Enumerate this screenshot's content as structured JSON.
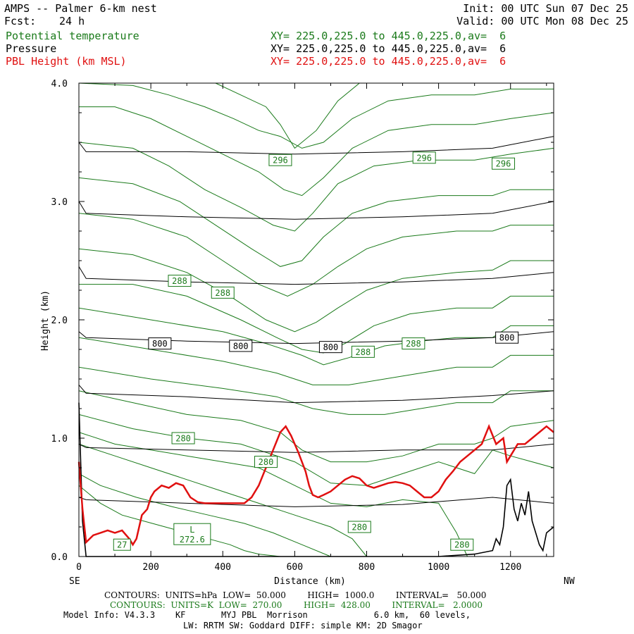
{
  "header": {
    "title": "AMPS -- Palmer 6-km nest",
    "fcst_label": "Fcst:",
    "fcst_value": "24 h",
    "init": "Init: 00 UTC Sun 07 Dec 25",
    "valid": "Valid: 00 UTC Mon 08 Dec 25",
    "fields": [
      {
        "name": "Potential temperature",
        "xy": "XY= 225.0,225.0 to 445.0,225.0,av=  6",
        "color": "#1a7a1a"
      },
      {
        "name": "Pressure",
        "xy": "XY= 225.0,225.0 to 445.0,225.0,av=  6",
        "color": "#000000"
      },
      {
        "name": "PBL Height (km MSL)",
        "xy": "XY= 225.0,225.0 to 445.0,225.0,av=  6",
        "color": "#e01010"
      }
    ]
  },
  "axes": {
    "xlabel": "Distance (km)",
    "ylabel": "Height (km)",
    "left_end": "SE",
    "right_end": "NW"
  },
  "footer": {
    "contours_pressure": "CONTOURS:  UNITS=hPa  LOW=  50.000        HIGH=  1000.0        INTERVAL=   50.000",
    "contours_theta": "CONTOURS:  UNITS=K  LOW=  270.00        HIGH=  428.00        INTERVAL=   2.0000",
    "model_info_1": "Model Info: V4.3.3    KF       MYJ PBL  Morrison             6.0 km,  60 levels,",
    "model_info_2": "LW: RRTM SW: Goddard DIFF: simple KM: 2D Smagor"
  },
  "colors": {
    "theta": "#1a7a1a",
    "pressure": "#000000",
    "pbl": "#e01010",
    "terrain": "#000000"
  },
  "chart_data": {
    "type": "line",
    "xlim": [
      0,
      1320
    ],
    "ylim": [
      0,
      4.0
    ],
    "x_ticks": [
      0,
      200,
      400,
      600,
      800,
      1000,
      1200
    ],
    "y_ticks": [
      "0.0",
      "1.0",
      "2.0",
      "3.0",
      "4.0"
    ],
    "grid": false,
    "pbl_height": {
      "name": "PBL Height (km MSL)",
      "x": [
        0,
        10,
        20,
        40,
        60,
        80,
        100,
        120,
        140,
        150,
        160,
        175,
        190,
        200,
        210,
        230,
        250,
        270,
        290,
        310,
        330,
        350,
        380,
        410,
        440,
        460,
        480,
        500,
        520,
        540,
        560,
        575,
        590,
        610,
        630,
        640,
        650,
        665,
        680,
        700,
        720,
        740,
        760,
        780,
        800,
        820,
        840,
        860,
        880,
        900,
        920,
        940,
        960,
        980,
        1000,
        1020,
        1040,
        1060,
        1080,
        1100,
        1120,
        1140,
        1160,
        1180,
        1190,
        1200,
        1220,
        1240,
        1260,
        1280,
        1300,
        1320
      ],
      "y": [
        0.8,
        0.4,
        0.12,
        0.18,
        0.2,
        0.22,
        0.2,
        0.22,
        0.15,
        0.1,
        0.15,
        0.35,
        0.4,
        0.5,
        0.55,
        0.6,
        0.58,
        0.62,
        0.6,
        0.5,
        0.46,
        0.45,
        0.45,
        0.45,
        0.45,
        0.45,
        0.5,
        0.6,
        0.75,
        0.9,
        1.05,
        1.1,
        1.02,
        0.88,
        0.72,
        0.6,
        0.52,
        0.5,
        0.52,
        0.55,
        0.6,
        0.65,
        0.68,
        0.66,
        0.6,
        0.58,
        0.6,
        0.62,
        0.63,
        0.62,
        0.6,
        0.55,
        0.5,
        0.5,
        0.55,
        0.65,
        0.72,
        0.8,
        0.85,
        0.9,
        0.95,
        1.1,
        0.95,
        1.0,
        0.8,
        0.85,
        0.95,
        0.95,
        1.0,
        1.05,
        1.1,
        1.05
      ]
    },
    "terrain": {
      "name": "Terrain",
      "x": [
        0,
        10,
        20,
        60,
        100,
        140,
        160,
        200,
        400,
        600,
        800,
        1000,
        1100,
        1150,
        1160,
        1170,
        1180,
        1190,
        1200,
        1210,
        1220,
        1230,
        1240,
        1250,
        1260,
        1270,
        1280,
        1290,
        1300,
        1320
      ],
      "y": [
        1.3,
        0.3,
        0.0,
        0.0,
        0.0,
        0.0,
        0.0,
        0.0,
        0.0,
        0.0,
        0.0,
        0.0,
        0.02,
        0.05,
        0.15,
        0.1,
        0.25,
        0.6,
        0.65,
        0.4,
        0.3,
        0.45,
        0.35,
        0.55,
        0.3,
        0.2,
        0.1,
        0.05,
        0.2,
        0.25
      ]
    },
    "pressure_contours": [
      {
        "x": [
          0,
          20,
          300,
          600,
          900,
          1150,
          1320
        ],
        "y": [
          0.5,
          0.48,
          0.45,
          0.42,
          0.44,
          0.5,
          0.45
        ]
      },
      {
        "x": [
          0,
          20,
          300,
          600,
          900,
          1150,
          1320
        ],
        "y": [
          0.95,
          0.92,
          0.9,
          0.88,
          0.9,
          0.9,
          0.95
        ]
      },
      {
        "x": [
          0,
          20,
          300,
          600,
          900,
          1150,
          1320
        ],
        "y": [
          1.45,
          1.38,
          1.35,
          1.3,
          1.32,
          1.36,
          1.4
        ]
      },
      {
        "x": [
          0,
          20,
          300,
          600,
          900,
          1150,
          1320
        ],
        "y": [
          1.9,
          1.85,
          1.82,
          1.8,
          1.82,
          1.85,
          1.9
        ]
      },
      {
        "x": [
          0,
          20,
          300,
          600,
          900,
          1150,
          1320
        ],
        "y": [
          2.45,
          2.35,
          2.32,
          2.3,
          2.32,
          2.35,
          2.4
        ]
      },
      {
        "x": [
          0,
          20,
          300,
          600,
          900,
          1150,
          1320
        ],
        "y": [
          3.0,
          2.9,
          2.87,
          2.85,
          2.87,
          2.9,
          3.0
        ]
      },
      {
        "x": [
          0,
          20,
          300,
          600,
          900,
          1150,
          1320
        ],
        "y": [
          3.5,
          3.42,
          3.42,
          3.4,
          3.42,
          3.45,
          3.55
        ]
      }
    ],
    "theta_contours": [
      {
        "x": [
          0,
          60,
          120,
          180,
          240,
          300,
          360,
          420,
          460,
          500,
          560
        ],
        "y": [
          0.6,
          0.45,
          0.35,
          0.3,
          0.25,
          0.2,
          0.15,
          0.1,
          0.05,
          0.02,
          0.0
        ]
      },
      {
        "x": [
          0,
          60,
          160,
          260,
          360,
          460,
          540,
          620,
          700
        ],
        "y": [
          0.7,
          0.6,
          0.5,
          0.42,
          0.35,
          0.28,
          0.2,
          0.1,
          0.0
        ]
      },
      {
        "x": [
          0,
          100,
          200,
          300,
          400,
          500,
          600,
          700,
          760,
          800
        ],
        "y": [
          0.95,
          0.85,
          0.75,
          0.65,
          0.55,
          0.45,
          0.35,
          0.25,
          0.15,
          0.0
        ]
      },
      {
        "x": [
          0,
          100,
          200,
          300,
          400,
          500,
          600,
          700,
          800,
          900,
          1000,
          1050,
          1080
        ],
        "y": [
          1.05,
          0.95,
          0.9,
          0.85,
          0.8,
          0.75,
          0.6,
          0.45,
          0.42,
          0.48,
          0.45,
          0.2,
          0.0
        ]
      },
      {
        "x": [
          0,
          150,
          300,
          450,
          600,
          700,
          800,
          900,
          1000,
          1100,
          1150,
          1200,
          1320
        ],
        "y": [
          1.2,
          1.08,
          1.0,
          0.95,
          0.8,
          0.62,
          0.6,
          0.7,
          0.8,
          0.7,
          0.9,
          0.85,
          0.75
        ]
      },
      {
        "x": [
          0,
          150,
          300,
          450,
          560,
          620,
          700,
          800,
          900,
          1000,
          1100,
          1150,
          1200,
          1320
        ],
        "y": [
          1.4,
          1.3,
          1.2,
          1.15,
          1.05,
          0.9,
          0.8,
          0.8,
          0.85,
          0.95,
          0.95,
          1.0,
          1.1,
          1.15
        ]
      },
      {
        "x": [
          0,
          200,
          400,
          550,
          650,
          750,
          850,
          950,
          1050,
          1150,
          1200,
          1320
        ],
        "y": [
          1.6,
          1.5,
          1.42,
          1.35,
          1.25,
          1.2,
          1.2,
          1.25,
          1.3,
          1.3,
          1.4,
          1.4
        ]
      },
      {
        "x": [
          0,
          200,
          400,
          550,
          650,
          750,
          850,
          950,
          1050,
          1150,
          1200,
          1320
        ],
        "y": [
          1.85,
          1.75,
          1.65,
          1.55,
          1.45,
          1.45,
          1.5,
          1.55,
          1.6,
          1.6,
          1.7,
          1.7
        ]
      },
      {
        "x": [
          0,
          200,
          400,
          520,
          620,
          680,
          750,
          850,
          950,
          1050,
          1150,
          1200,
          1320
        ],
        "y": [
          2.1,
          2.0,
          1.9,
          1.8,
          1.7,
          1.62,
          1.68,
          1.78,
          1.82,
          1.85,
          1.85,
          1.95,
          1.95
        ]
      },
      {
        "x": [
          0,
          150,
          300,
          450,
          550,
          620,
          680,
          740,
          820,
          920,
          1050,
          1150,
          1200,
          1320
        ],
        "y": [
          2.3,
          2.3,
          2.2,
          2.0,
          1.85,
          1.75,
          1.72,
          1.8,
          1.95,
          2.05,
          2.1,
          2.1,
          2.2,
          2.2
        ]
      },
      {
        "x": [
          0,
          150,
          300,
          420,
          520,
          600,
          660,
          720,
          800,
          900,
          1050,
          1150,
          1200,
          1320
        ],
        "y": [
          2.6,
          2.55,
          2.4,
          2.2,
          2.0,
          1.9,
          1.98,
          2.1,
          2.25,
          2.35,
          2.4,
          2.42,
          2.5,
          2.5
        ]
      },
      {
        "x": [
          0,
          150,
          300,
          400,
          500,
          580,
          650,
          720,
          800,
          900,
          1050,
          1150,
          1200,
          1320
        ],
        "y": [
          2.9,
          2.85,
          2.7,
          2.5,
          2.3,
          2.2,
          2.3,
          2.45,
          2.6,
          2.7,
          2.75,
          2.75,
          2.8,
          2.8
        ]
      },
      {
        "x": [
          0,
          150,
          280,
          380,
          480,
          560,
          620,
          680,
          760,
          860,
          1000,
          1150,
          1200,
          1320
        ],
        "y": [
          3.2,
          3.15,
          3.0,
          2.8,
          2.6,
          2.45,
          2.5,
          2.7,
          2.9,
          3.0,
          3.05,
          3.05,
          3.1,
          3.1
        ]
      },
      {
        "x": [
          0,
          150,
          250,
          350,
          450,
          540,
          600,
          650,
          720,
          820,
          950,
          1100,
          1200,
          1320
        ],
        "y": [
          3.5,
          3.45,
          3.3,
          3.1,
          2.95,
          2.8,
          2.75,
          2.9,
          3.15,
          3.3,
          3.35,
          3.35,
          3.4,
          3.45
        ]
      },
      {
        "x": [
          0,
          100,
          200,
          300,
          400,
          500,
          570,
          620,
          680,
          760,
          860,
          980,
          1100,
          1200,
          1320
        ],
        "y": [
          3.8,
          3.8,
          3.7,
          3.55,
          3.4,
          3.25,
          3.1,
          3.05,
          3.2,
          3.45,
          3.6,
          3.65,
          3.65,
          3.7,
          3.75
        ]
      },
      {
        "x": [
          0,
          150,
          250,
          350,
          430,
          500,
          560,
          620,
          680,
          760,
          860,
          980,
          1100,
          1200,
          1320
        ],
        "y": [
          4.0,
          3.98,
          3.9,
          3.8,
          3.7,
          3.6,
          3.55,
          3.45,
          3.5,
          3.7,
          3.85,
          3.9,
          3.9,
          3.95,
          3.95
        ]
      },
      {
        "x": [
          380,
          450,
          520,
          560,
          600,
          660,
          720,
          780
        ],
        "y": [
          4.0,
          3.9,
          3.8,
          3.65,
          3.45,
          3.6,
          3.85,
          4.0
        ]
      }
    ],
    "pressure_labels": [
      {
        "text": "800",
        "x": 225,
        "y": 1.8
      },
      {
        "text": "800",
        "x": 450,
        "y": 1.78
      },
      {
        "text": "800",
        "x": 700,
        "y": 1.77
      },
      {
        "text": "800",
        "x": 1190,
        "y": 1.85
      }
    ],
    "theta_labels": [
      {
        "text": "296",
        "x": 560,
        "y": 3.35
      },
      {
        "text": "296",
        "x": 960,
        "y": 3.37
      },
      {
        "text": "296",
        "x": 1180,
        "y": 3.32
      },
      {
        "text": "288",
        "x": 280,
        "y": 2.33
      },
      {
        "text": "288",
        "x": 400,
        "y": 2.23
      },
      {
        "text": "288",
        "x": 790,
        "y": 1.73
      },
      {
        "text": "288",
        "x": 930,
        "y": 1.8
      },
      {
        "text": "280",
        "x": 290,
        "y": 1.0
      },
      {
        "text": "280",
        "x": 520,
        "y": 0.8
      },
      {
        "text": "280",
        "x": 780,
        "y": 0.25
      },
      {
        "text": "280",
        "x": 1065,
        "y": 0.1
      },
      {
        "text": "27",
        "x": 120,
        "y": 0.1
      }
    ],
    "low_marker": {
      "text": "L",
      "value": "272.6",
      "x": 315,
      "y": 0.1
    }
  }
}
